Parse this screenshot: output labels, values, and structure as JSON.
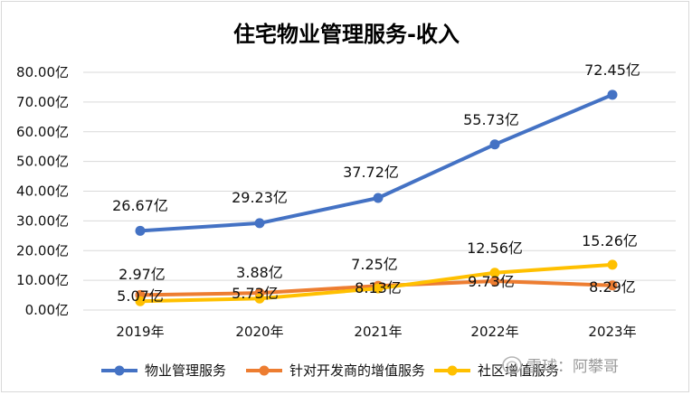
{
  "chart_data": {
    "type": "line",
    "title": "住宅物业管理服务-收入",
    "categories": [
      "2019年",
      "2020年",
      "2021年",
      "2022年",
      "2023年"
    ],
    "ylim": [
      0,
      80
    ],
    "yticks": [
      "0.00亿",
      "10.00亿",
      "20.00亿",
      "30.00亿",
      "40.00亿",
      "50.00亿",
      "60.00亿",
      "70.00亿",
      "80.00亿"
    ],
    "grid": true,
    "legend_position": "bottom",
    "series": [
      {
        "name": "物业管理服务",
        "color": "#4472C4",
        "values": [
          26.67,
          29.23,
          37.72,
          55.73,
          72.45
        ],
        "labels": [
          "26.67亿",
          "29.23亿",
          "37.72亿",
          "55.73亿",
          "72.45亿"
        ]
      },
      {
        "name": "针对开发商的增值服务",
        "color": "#ED7D31",
        "values": [
          5.07,
          5.73,
          8.13,
          9.73,
          8.29
        ],
        "labels": [
          "5.07亿",
          "5.73亿",
          "8.13亿",
          "9.73亿",
          "8.29亿"
        ]
      },
      {
        "name": "社区增值服务",
        "color": "#FFC000",
        "values": [
          2.97,
          3.88,
          7.25,
          12.56,
          15.26
        ],
        "labels": [
          "2.97亿",
          "3.88亿",
          "7.25亿",
          "12.56亿",
          "15.26亿"
        ]
      }
    ]
  },
  "watermark": {
    "text": "雪球：阿攀哥",
    "icon": "snowball-logo-icon"
  }
}
